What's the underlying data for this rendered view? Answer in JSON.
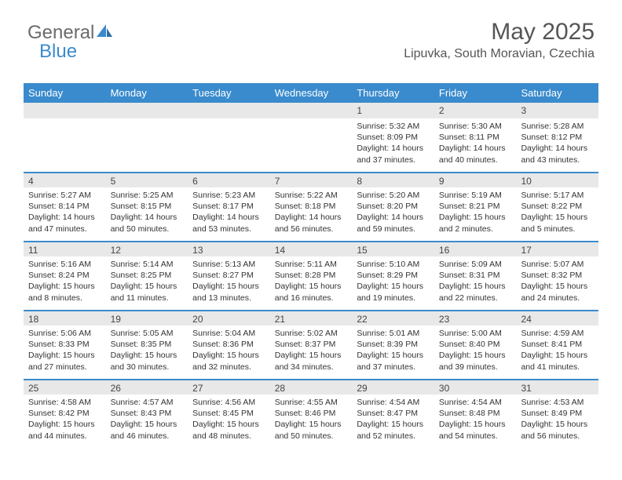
{
  "logo": {
    "text1": "General",
    "text2": "Blue"
  },
  "header": {
    "month": "May 2025",
    "location": "Lipuvka, South Moravian, Czechia"
  },
  "colors": {
    "accent": "#3a8bcd",
    "band": "#e8e8e8",
    "text": "#333333"
  },
  "weekdays": [
    "Sunday",
    "Monday",
    "Tuesday",
    "Wednesday",
    "Thursday",
    "Friday",
    "Saturday"
  ],
  "weeks": [
    [
      null,
      null,
      null,
      null,
      {
        "n": "1",
        "sunrise": "5:32 AM",
        "sunset": "8:09 PM",
        "day_h": "14",
        "day_m": "37"
      },
      {
        "n": "2",
        "sunrise": "5:30 AM",
        "sunset": "8:11 PM",
        "day_h": "14",
        "day_m": "40"
      },
      {
        "n": "3",
        "sunrise": "5:28 AM",
        "sunset": "8:12 PM",
        "day_h": "14",
        "day_m": "43"
      }
    ],
    [
      {
        "n": "4",
        "sunrise": "5:27 AM",
        "sunset": "8:14 PM",
        "day_h": "14",
        "day_m": "47"
      },
      {
        "n": "5",
        "sunrise": "5:25 AM",
        "sunset": "8:15 PM",
        "day_h": "14",
        "day_m": "50"
      },
      {
        "n": "6",
        "sunrise": "5:23 AM",
        "sunset": "8:17 PM",
        "day_h": "14",
        "day_m": "53"
      },
      {
        "n": "7",
        "sunrise": "5:22 AM",
        "sunset": "8:18 PM",
        "day_h": "14",
        "day_m": "56"
      },
      {
        "n": "8",
        "sunrise": "5:20 AM",
        "sunset": "8:20 PM",
        "day_h": "14",
        "day_m": "59"
      },
      {
        "n": "9",
        "sunrise": "5:19 AM",
        "sunset": "8:21 PM",
        "day_h": "15",
        "day_m": "2"
      },
      {
        "n": "10",
        "sunrise": "5:17 AM",
        "sunset": "8:22 PM",
        "day_h": "15",
        "day_m": "5"
      }
    ],
    [
      {
        "n": "11",
        "sunrise": "5:16 AM",
        "sunset": "8:24 PM",
        "day_h": "15",
        "day_m": "8"
      },
      {
        "n": "12",
        "sunrise": "5:14 AM",
        "sunset": "8:25 PM",
        "day_h": "15",
        "day_m": "11"
      },
      {
        "n": "13",
        "sunrise": "5:13 AM",
        "sunset": "8:27 PM",
        "day_h": "15",
        "day_m": "13"
      },
      {
        "n": "14",
        "sunrise": "5:11 AM",
        "sunset": "8:28 PM",
        "day_h": "15",
        "day_m": "16"
      },
      {
        "n": "15",
        "sunrise": "5:10 AM",
        "sunset": "8:29 PM",
        "day_h": "15",
        "day_m": "19"
      },
      {
        "n": "16",
        "sunrise": "5:09 AM",
        "sunset": "8:31 PM",
        "day_h": "15",
        "day_m": "22"
      },
      {
        "n": "17",
        "sunrise": "5:07 AM",
        "sunset": "8:32 PM",
        "day_h": "15",
        "day_m": "24"
      }
    ],
    [
      {
        "n": "18",
        "sunrise": "5:06 AM",
        "sunset": "8:33 PM",
        "day_h": "15",
        "day_m": "27"
      },
      {
        "n": "19",
        "sunrise": "5:05 AM",
        "sunset": "8:35 PM",
        "day_h": "15",
        "day_m": "30"
      },
      {
        "n": "20",
        "sunrise": "5:04 AM",
        "sunset": "8:36 PM",
        "day_h": "15",
        "day_m": "32"
      },
      {
        "n": "21",
        "sunrise": "5:02 AM",
        "sunset": "8:37 PM",
        "day_h": "15",
        "day_m": "34"
      },
      {
        "n": "22",
        "sunrise": "5:01 AM",
        "sunset": "8:39 PM",
        "day_h": "15",
        "day_m": "37"
      },
      {
        "n": "23",
        "sunrise": "5:00 AM",
        "sunset": "8:40 PM",
        "day_h": "15",
        "day_m": "39"
      },
      {
        "n": "24",
        "sunrise": "4:59 AM",
        "sunset": "8:41 PM",
        "day_h": "15",
        "day_m": "41"
      }
    ],
    [
      {
        "n": "25",
        "sunrise": "4:58 AM",
        "sunset": "8:42 PM",
        "day_h": "15",
        "day_m": "44"
      },
      {
        "n": "26",
        "sunrise": "4:57 AM",
        "sunset": "8:43 PM",
        "day_h": "15",
        "day_m": "46"
      },
      {
        "n": "27",
        "sunrise": "4:56 AM",
        "sunset": "8:45 PM",
        "day_h": "15",
        "day_m": "48"
      },
      {
        "n": "28",
        "sunrise": "4:55 AM",
        "sunset": "8:46 PM",
        "day_h": "15",
        "day_m": "50"
      },
      {
        "n": "29",
        "sunrise": "4:54 AM",
        "sunset": "8:47 PM",
        "day_h": "15",
        "day_m": "52"
      },
      {
        "n": "30",
        "sunrise": "4:54 AM",
        "sunset": "8:48 PM",
        "day_h": "15",
        "day_m": "54"
      },
      {
        "n": "31",
        "sunrise": "4:53 AM",
        "sunset": "8:49 PM",
        "day_h": "15",
        "day_m": "56"
      }
    ]
  ],
  "labels": {
    "sunrise": "Sunrise: ",
    "sunset": "Sunset: ",
    "daylight1": "Daylight: ",
    "daylight2": " hours",
    "daylight3": "and ",
    "daylight4": " minutes."
  }
}
